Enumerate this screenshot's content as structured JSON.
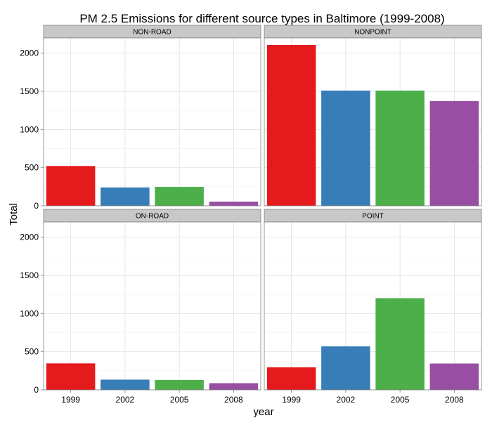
{
  "chart_data": {
    "type": "bar",
    "title": "PM 2.5 Emissions for different source types in Baltimore (1999-2008)",
    "xlabel": "year",
    "ylabel": "Total",
    "ylim": [
      0,
      2200
    ],
    "yticks": [
      0,
      500,
      1000,
      1500,
      2000
    ],
    "categories": [
      "1999",
      "2002",
      "2005",
      "2008"
    ],
    "colors": [
      "#e41a1c",
      "#377eb8",
      "#4daf4a",
      "#984ea3"
    ],
    "grid": true,
    "facets": [
      {
        "name": "NON-ROAD",
        "values": [
          522,
          241,
          248,
          55
        ]
      },
      {
        "name": "NONPOINT",
        "values": [
          2108,
          1510,
          1510,
          1373
        ]
      },
      {
        "name": "ON-ROAD",
        "values": [
          347,
          134,
          130,
          88
        ]
      },
      {
        "name": "POINT",
        "values": [
          296,
          570,
          1202,
          345
        ]
      }
    ]
  }
}
